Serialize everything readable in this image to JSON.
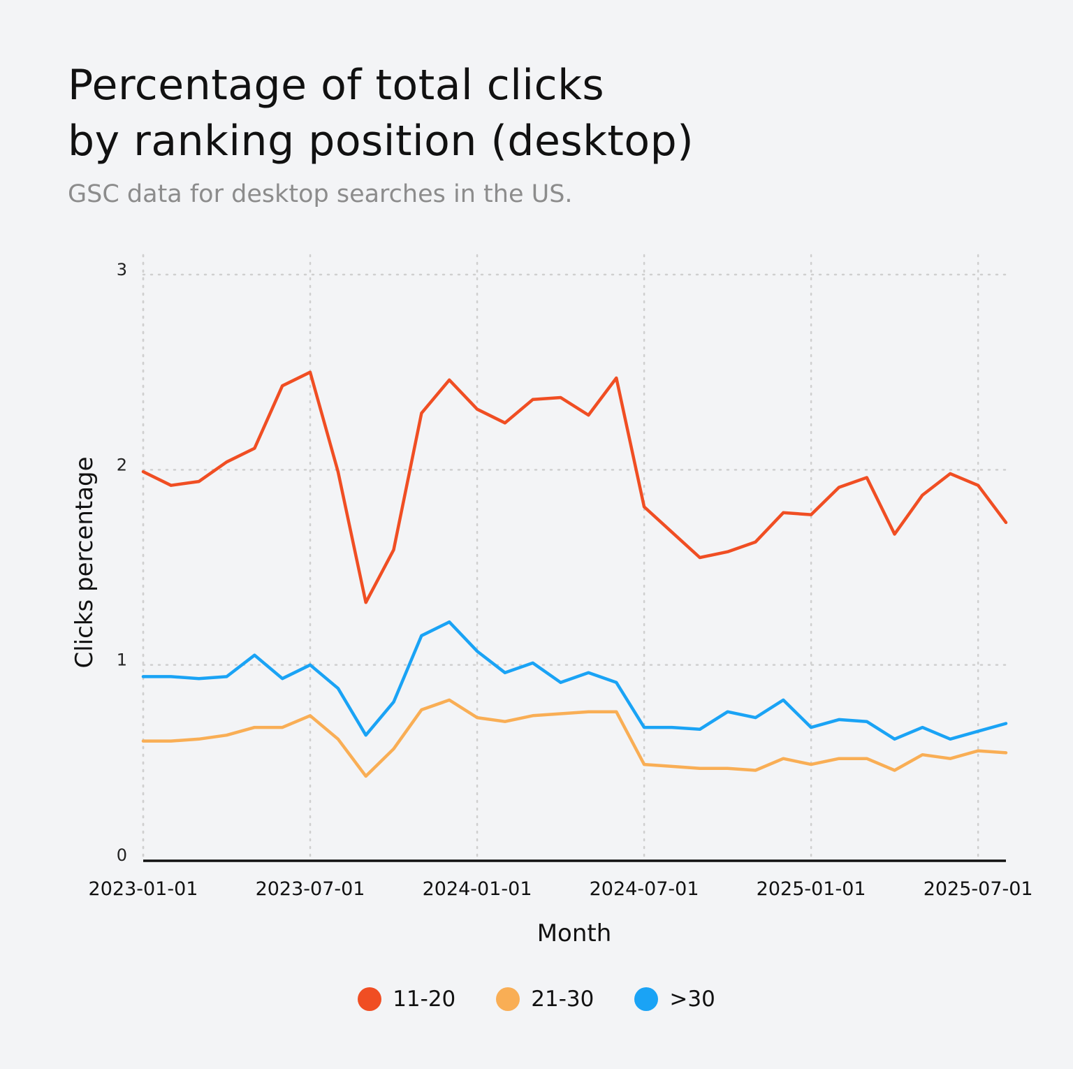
{
  "title": "Percentage of total clicks\nby ranking position (desktop)",
  "subtitle": "GSC data for desktop searches in the US.",
  "chart_data": {
    "type": "line",
    "title": "Percentage of total clicks by ranking position (desktop)",
    "subtitle": "GSC data for desktop searches in the US.",
    "xlabel": "Month",
    "ylabel": "Clicks percentage",
    "ylim": [
      0,
      3
    ],
    "yticks": [
      "0",
      "1",
      "2",
      "3"
    ],
    "xticks": [
      "2023-01-01",
      "2023-07-01",
      "2024-01-01",
      "2024-07-01",
      "2025-01-01",
      "2025-07-01"
    ],
    "grid": true,
    "legend_position": "bottom",
    "x": [
      "2023-01",
      "2023-02",
      "2023-03",
      "2023-04",
      "2023-05",
      "2023-06",
      "2023-07",
      "2023-08",
      "2023-09",
      "2023-10",
      "2023-11",
      "2023-12",
      "2024-01",
      "2024-02",
      "2024-03",
      "2024-04",
      "2024-05",
      "2024-06",
      "2024-07",
      "2024-08",
      "2024-09",
      "2024-10",
      "2024-11",
      "2024-12",
      "2025-01",
      "2025-02",
      "2025-03",
      "2025-04",
      "2025-05",
      "2025-06",
      "2025-07",
      "2025-08"
    ],
    "series": [
      {
        "name": "11-20",
        "color": "#f04e23",
        "values": [
          1.99,
          1.92,
          1.94,
          2.04,
          2.11,
          2.43,
          2.5,
          1.99,
          1.32,
          1.59,
          2.29,
          2.46,
          2.31,
          2.24,
          2.36,
          2.37,
          2.28,
          2.47,
          1.81,
          1.68,
          1.55,
          1.58,
          1.63,
          1.78,
          1.77,
          1.91,
          1.96,
          1.67,
          1.87,
          1.98,
          1.92,
          1.73
        ]
      },
      {
        "name": "21-30",
        "color": "#f9ae55",
        "values": [
          0.61,
          0.61,
          0.62,
          0.64,
          0.68,
          0.68,
          0.74,
          0.62,
          0.43,
          0.57,
          0.77,
          0.82,
          0.73,
          0.71,
          0.74,
          0.75,
          0.76,
          0.76,
          0.49,
          0.48,
          0.47,
          0.47,
          0.46,
          0.52,
          0.49,
          0.52,
          0.52,
          0.46,
          0.54,
          0.52,
          0.56,
          0.55
        ]
      },
      {
        "name": ">30",
        "color": "#1aa3f5",
        "values": [
          0.94,
          0.94,
          0.93,
          0.94,
          1.05,
          0.93,
          1.0,
          0.88,
          0.64,
          0.81,
          1.15,
          1.22,
          1.07,
          0.96,
          1.01,
          0.91,
          0.96,
          0.91,
          0.68,
          0.68,
          0.67,
          0.76,
          0.73,
          0.82,
          0.68,
          0.72,
          0.71,
          0.62,
          0.68,
          0.62,
          0.66,
          0.7
        ]
      }
    ]
  }
}
